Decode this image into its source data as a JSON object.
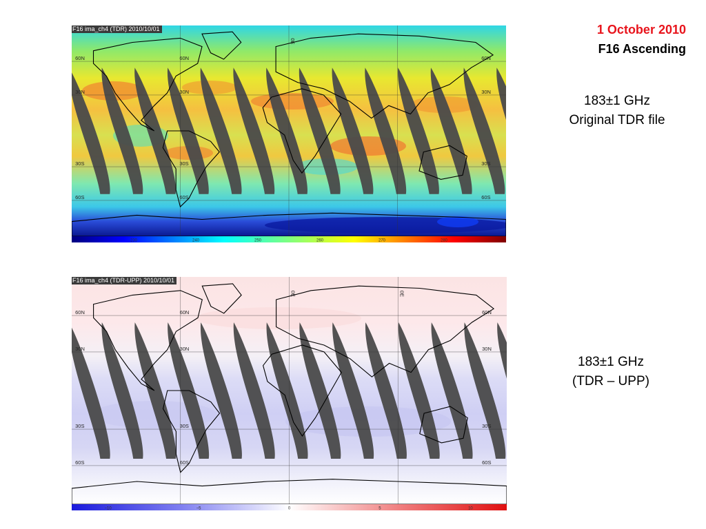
{
  "header": {
    "date": "1 October 2010",
    "pass": "F16 Ascending"
  },
  "panels": [
    {
      "id": "tdr",
      "title": "F16 ima_ch4 (TDR) 2010/10/01",
      "caption_line1": "183±1 GHz",
      "caption_line2": "Original TDR file",
      "colorbar_ticks": [
        "230",
        "240",
        "250",
        "260",
        "270",
        "280"
      ],
      "colorbar_range": [
        220,
        290
      ],
      "colormap": "jet",
      "lat_labels_west": [
        "60N",
        "30N",
        "30S",
        "60S"
      ],
      "lat_labels_mid": [
        "60N",
        "30N",
        "30S",
        "60S"
      ],
      "lat_labels_east": [
        "60N",
        "30N",
        "30S",
        "60S"
      ],
      "lon_labels": [
        "0E"
      ],
      "colors": {
        "swath_gap": "#4a4a4a",
        "land_outline": "#000000"
      }
    },
    {
      "id": "diff",
      "title": "F16 ima_ch4 (TDR-UPP) 2010/10/01",
      "caption_line1": "183±1 GHz",
      "caption_line2": "(TDR – UPP)",
      "colorbar_ticks": [
        "−10",
        "−5",
        "0",
        "5",
        "10"
      ],
      "colorbar_range": [
        -12,
        12
      ],
      "colormap": "blue-white-red",
      "lat_labels_west": [
        "60N",
        "30N",
        "30S",
        "60S"
      ],
      "lat_labels_mid": [
        "60N",
        "30N",
        "30S",
        "60S"
      ],
      "lat_labels_east": [
        "60N",
        "30N",
        "30S",
        "60S"
      ],
      "lon_labels": [
        "0E",
        "0E"
      ],
      "colors": {
        "swath_gap": "#4a4a4a",
        "land_outline": "#000000"
      }
    }
  ]
}
